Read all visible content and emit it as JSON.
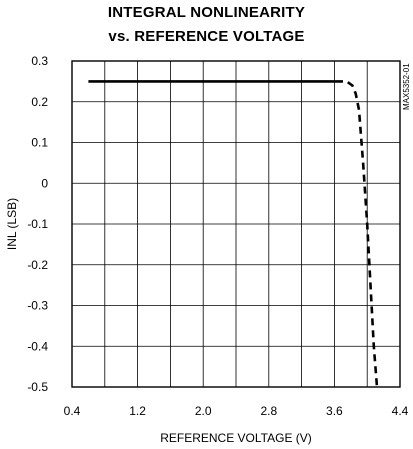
{
  "chart_data": {
    "type": "line",
    "title_lines": [
      "INTEGRAL NONLINEARITY",
      "vs. REFERENCE VOLTAGE"
    ],
    "xlabel": "REFERENCE VOLTAGE (V)",
    "ylabel": "INL (LSB)",
    "side_code": "MAX5352-01",
    "xlim": [
      0.4,
      4.4
    ],
    "ylim": [
      -0.5,
      0.3
    ],
    "x_ticks": [
      "0.4",
      "1.2",
      "2.0",
      "2.8",
      "3.6",
      "4.4"
    ],
    "y_ticks": [
      "0.3",
      "0.2",
      "0.1",
      "0",
      "-0.1",
      "-0.2",
      "-0.3",
      "-0.4",
      "-0.5"
    ],
    "grid": true,
    "series": [
      {
        "style": "solid",
        "color": "#000000",
        "points": [
          [
            0.6,
            0.25
          ],
          [
            3.62,
            0.25
          ]
        ]
      },
      {
        "style": "dashed",
        "color": "#000000",
        "points": [
          [
            3.62,
            0.25
          ],
          [
            3.75,
            0.25
          ],
          [
            3.82,
            0.24
          ],
          [
            3.86,
            0.22
          ],
          [
            3.9,
            0.18
          ],
          [
            3.95,
            0.05
          ],
          [
            4.0,
            -0.1
          ],
          [
            4.04,
            -0.25
          ],
          [
            4.08,
            -0.4
          ],
          [
            4.12,
            -0.5
          ]
        ]
      }
    ]
  }
}
